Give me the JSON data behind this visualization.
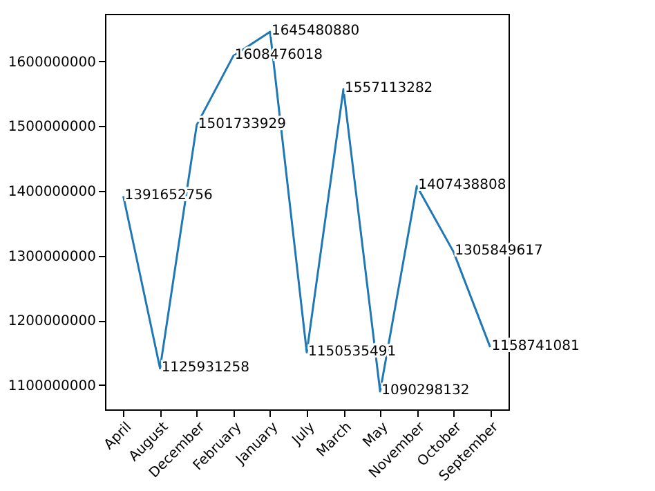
{
  "chart_data": {
    "type": "line",
    "categories": [
      "April",
      "August",
      "December",
      "February",
      "January",
      "July",
      "March",
      "May",
      "November",
      "October",
      "September"
    ],
    "series": [
      {
        "color": "#1f77b4",
        "values": [
          1391652756,
          1125931258,
          1501733929,
          1608476018,
          1645480880,
          1150535491,
          1557113282,
          1090298132,
          1407438808,
          1305849617,
          1158741081
        ]
      }
    ],
    "ylim": [
      1062539000,
      1673240000
    ],
    "yticks": [
      1100000000,
      1200000000,
      1300000000,
      1400000000,
      1500000000,
      1600000000
    ],
    "data_labels": true,
    "grid": false,
    "legend": false,
    "marker": "none",
    "line_style": "solid"
  }
}
